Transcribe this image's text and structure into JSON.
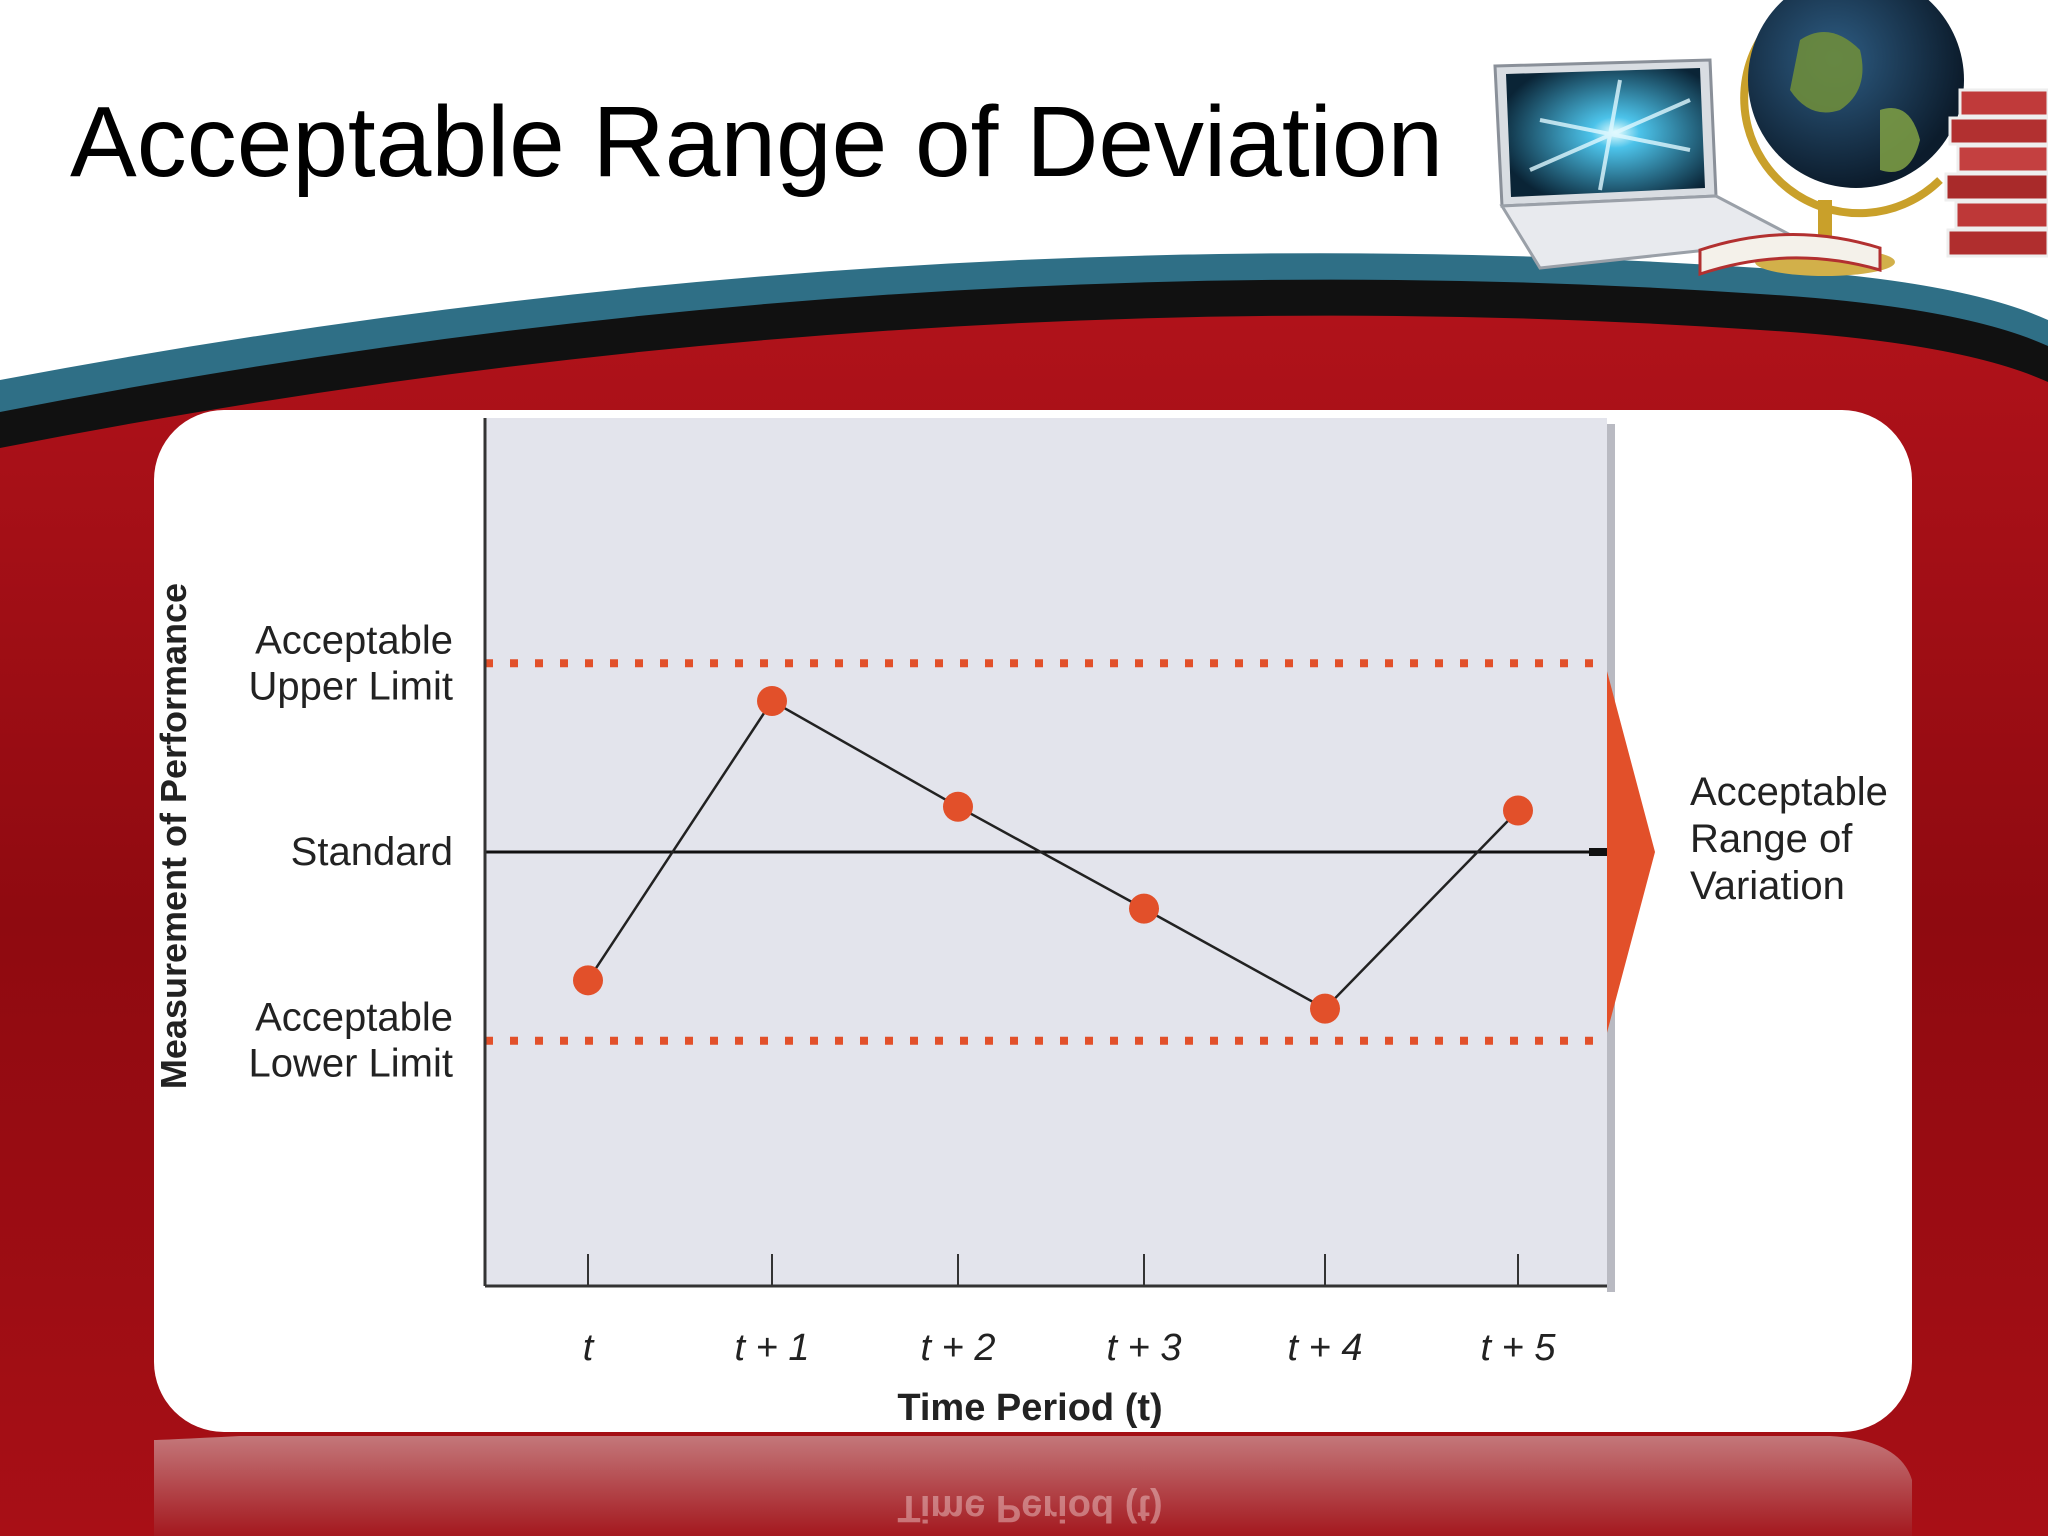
{
  "slide": {
    "title": "Acceptable Range of Deviation"
  },
  "colors": {
    "marker": "#e2502a",
    "limit_line": "#e2502a",
    "plot_bg": "#e3e4ec",
    "banner_red": "#9d0c12",
    "banner_teal": "#2f6f86"
  },
  "decor": {
    "images": [
      "laptop-image",
      "globe-image",
      "books-image"
    ]
  },
  "chart_data": {
    "type": "line",
    "title": "",
    "xlabel": "Time Period (t)",
    "ylabel": "Measurement of Performance",
    "categories": [
      "t",
      "t + 1",
      "t + 2",
      "t + 3",
      "t + 4",
      "t + 5"
    ],
    "series": [
      {
        "values": [
          -0.68,
          0.8,
          0.24,
          -0.3,
          -0.83,
          0.22
        ]
      }
    ],
    "ylim": [
      -2.3,
      2.3
    ],
    "reference_lines": [
      {
        "label_lines": [
          "Acceptable",
          "Upper Limit"
        ],
        "value": 1.0,
        "style": "dotted"
      },
      {
        "label_lines": [
          "Standard"
        ],
        "value": 0.0,
        "style": "solid"
      },
      {
        "label_lines": [
          "Acceptable",
          "Lower Limit"
        ],
        "value": -1.0,
        "style": "dotted"
      }
    ],
    "range_annotation": {
      "lines": [
        "Acceptable",
        "Range of",
        "Variation"
      ],
      "from": -1.0,
      "to": 1.0
    },
    "grid": false,
    "legend": "none"
  }
}
